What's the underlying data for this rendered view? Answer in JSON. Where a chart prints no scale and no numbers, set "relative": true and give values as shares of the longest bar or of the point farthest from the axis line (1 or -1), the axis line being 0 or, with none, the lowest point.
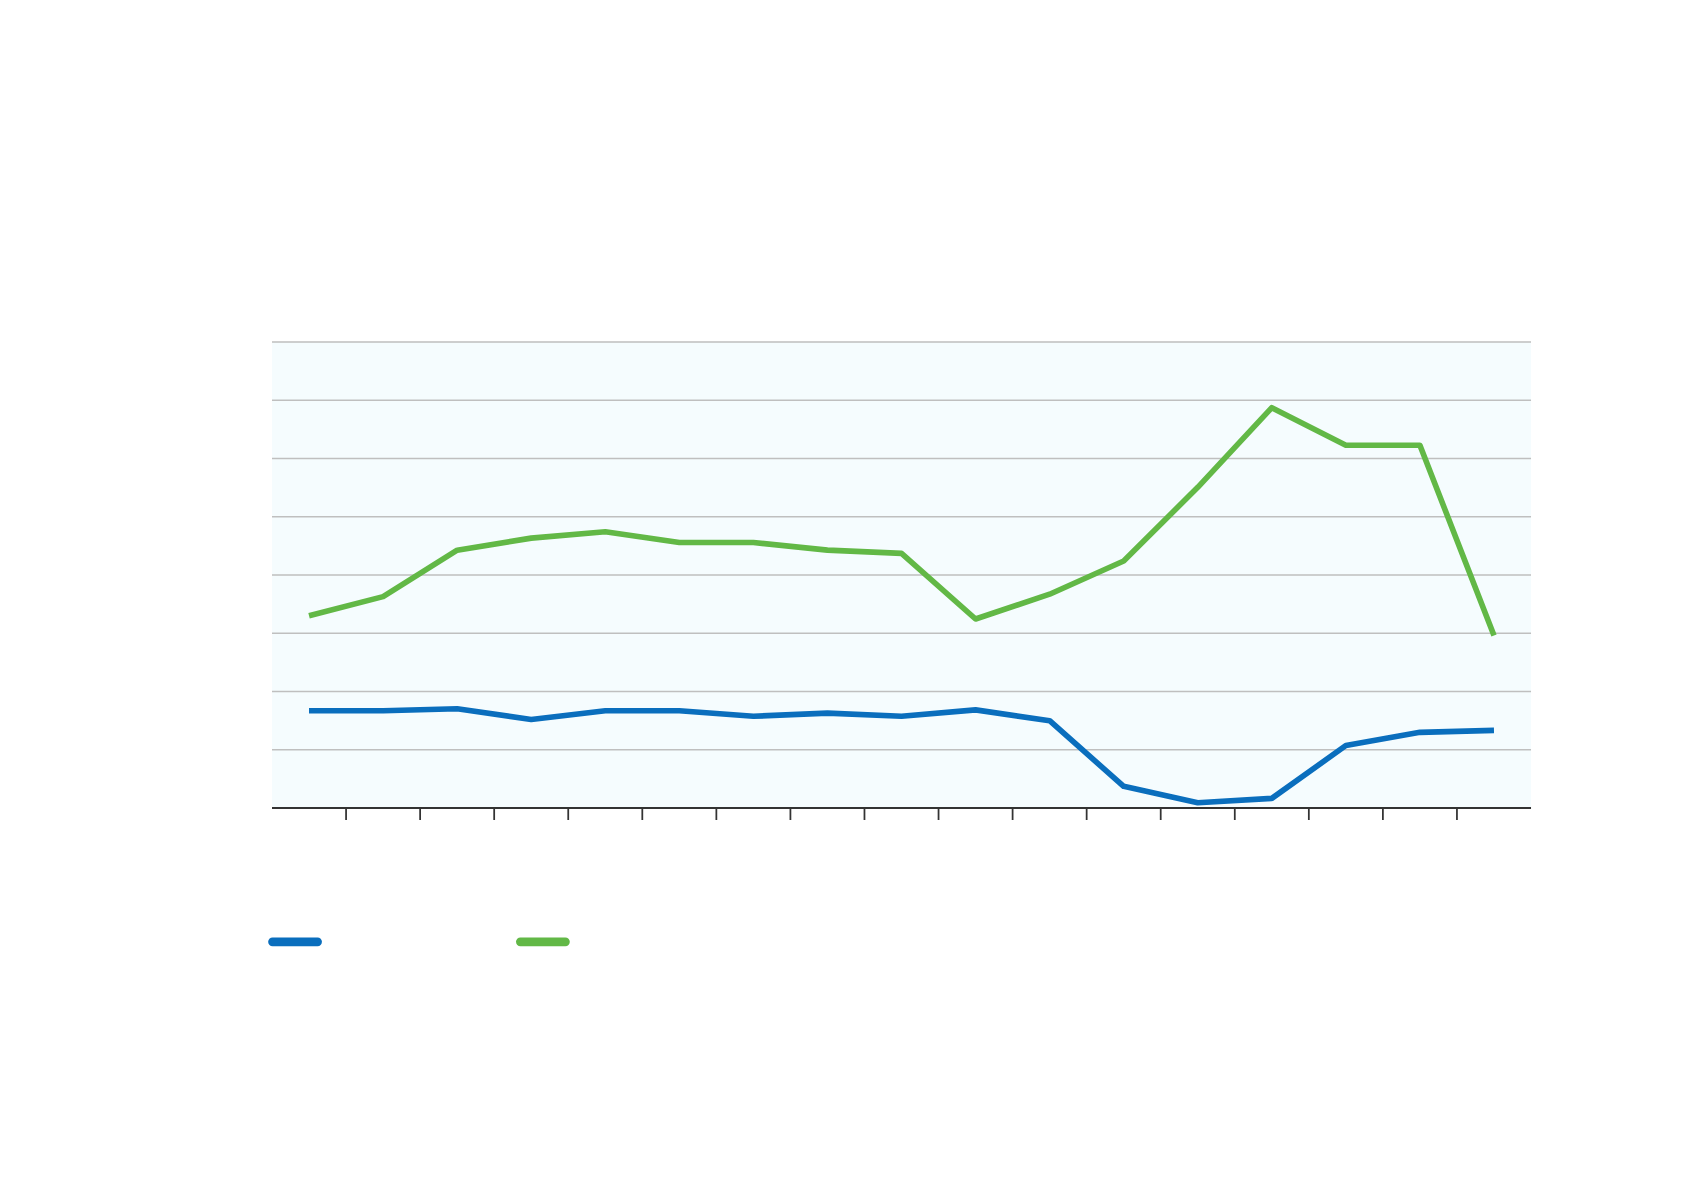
{
  "chart_data": {
    "type": "line",
    "relative": true,
    "grid": "y",
    "marker": "none",
    "line_style": "solid",
    "categories": [
      null,
      null,
      null,
      null,
      null,
      null,
      null,
      null,
      null,
      null,
      null,
      null,
      null,
      null,
      null,
      null,
      null
    ],
    "series": [
      {
        "color": "#0a6ebd",
        "values": [
          0.243,
          0.243,
          0.248,
          0.221,
          0.243,
          0.243,
          0.229,
          0.237,
          0.229,
          0.245,
          0.218,
          0.054,
          0.013,
          0.024,
          0.156,
          0.189,
          0.194
        ]
      },
      {
        "color": "#62b846",
        "values": [
          0.48,
          0.528,
          0.644,
          0.674,
          0.69,
          0.663,
          0.663,
          0.644,
          0.636,
          0.472,
          0.534,
          0.617,
          0.801,
          1,
          0.906,
          0.906,
          0.431
        ]
      }
    ]
  }
}
